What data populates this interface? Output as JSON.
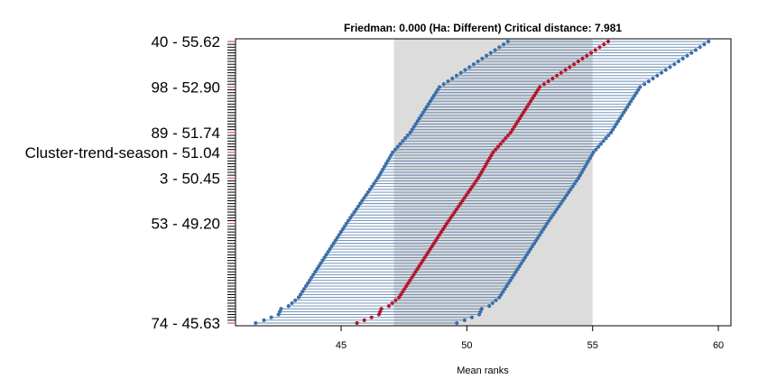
{
  "chart_data": {
    "type": "scatter",
    "title": "Friedman: 0.000 (Ha: Different) Critical distance: 7.981",
    "xlabel": "Mean ranks",
    "ylabel": "",
    "xlim": [
      40.8,
      60.5
    ],
    "x_ticks": [
      "45",
      "50",
      "55",
      "60"
    ],
    "x_tick_values": [
      45,
      50,
      55,
      60
    ],
    "critical_band": [
      47.1,
      55.0
    ],
    "n_rows": 100,
    "labeled_rows": [
      {
        "row": 0,
        "label": "40 - 55.62"
      },
      {
        "row": 16,
        "label": "98 - 52.90"
      },
      {
        "row": 32,
        "label": "89 - 51.74"
      },
      {
        "row": 39,
        "label": "Cluster-trend-season - 51.04"
      },
      {
        "row": 48,
        "label": "3 - 50.45"
      },
      {
        "row": 64,
        "label": "53 - 49.20"
      },
      {
        "row": 99,
        "label": "74 - 45.63"
      }
    ],
    "rank_curve": [
      [
        0,
        55.62
      ],
      [
        16,
        52.9
      ],
      [
        32,
        51.74
      ],
      [
        39,
        51.04
      ],
      [
        48,
        50.45
      ],
      [
        64,
        49.2
      ],
      [
        90,
        47.3
      ],
      [
        93,
        46.9
      ],
      [
        94,
        46.6
      ],
      [
        96,
        46.5
      ],
      [
        99,
        45.63
      ]
    ],
    "critical_distance_half": 3.99,
    "outliers": [
      {
        "row": 99,
        "low": 41.6,
        "high": 49.6
      }
    ],
    "colors": {
      "point_blue": "#3b6fa8",
      "point_red": "#b5152b",
      "line": "#4a73a6",
      "band_gray": "#dcdcdc",
      "band_blue": "#b7c4da",
      "tick_red": "#d2334a"
    }
  }
}
